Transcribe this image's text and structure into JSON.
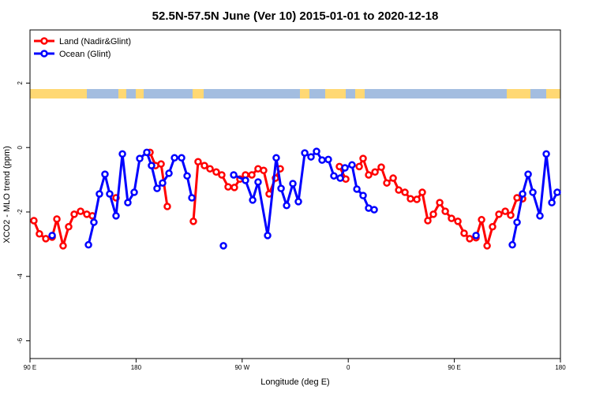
{
  "chart_data": {
    "type": "line",
    "title": "52.5N-57.5N June (Ver 10)   2015-01-01 to 2020-12-18",
    "x_label": "Longitude (deg E)",
    "y_label": "XCO2 - MLO trend (ppm)",
    "xlim": [
      90,
      540
    ],
    "ylim": [
      -6.55,
      3.65
    ],
    "xticks": [
      {
        "value": 90,
        "label": "90 E"
      },
      180,
      {
        "value": 270,
        "label": "90 W"
      },
      {
        "value": 360,
        "label": "0"
      },
      {
        "value": 450,
        "label": "90 E"
      },
      {
        "value": 540,
        "label": "180"
      }
    ],
    "yticks": [
      -6,
      -4,
      -2,
      0,
      2
    ],
    "legend": "top-left",
    "series": [
      {
        "name": "Land (Nadir&Glint)",
        "color": "#ff0000",
        "x": [
          93.3,
          98.0,
          103.4,
          108.8,
          112.8,
          118.1,
          122.8,
          127.5,
          132.9,
          138.2,
          142.9,
          null,
          163.0,
          null,
          191.8,
          196.5,
          201.2,
          206.5,
          null,
          228.6,
          232.6,
          238.0,
          242.7,
          248.0,
          252.7,
          258.1,
          263.4,
          268.1,
          272.8,
          278.2,
          283.5,
          288.2,
          292.9,
          298.3,
          302.3,
          null,
          352.5,
          357.9,
          null,
          369.3,
          372.6,
          377.3,
          382.7,
          388.0,
          392.7,
          398.1,
          402.8,
          408.1,
          412.8,
          418.2,
          422.8,
          427.5,
          432.2,
          437.6,
          442.3,
          447.6,
          453.0,
          458.3,
          463.0,
          468.4,
          473.1,
          477.8,
          482.4,
          487.8,
          493.2,
          497.8,
          503.2,
          507.9
        ],
        "values": [
          -2.27,
          -2.68,
          -2.83,
          -2.78,
          -2.22,
          -3.05,
          -2.46,
          -2.07,
          -1.98,
          -2.07,
          -2.12,
          null,
          -1.56,
          null,
          -0.15,
          -0.56,
          -0.51,
          -1.83,
          null,
          -2.29,
          -0.44,
          -0.56,
          -0.66,
          -0.76,
          -0.85,
          -1.22,
          -1.24,
          -0.98,
          -0.85,
          -0.85,
          -0.66,
          -0.71,
          -1.44,
          -0.95,
          -0.66,
          null,
          -0.59,
          -0.98,
          null,
          -0.59,
          -0.34,
          -0.85,
          -0.76,
          -0.61,
          -1.1,
          -0.95,
          -1.32,
          -1.39,
          -1.59,
          -1.61,
          -1.39,
          -2.27,
          -2.07,
          -1.71,
          -1.98,
          -2.2,
          -2.29,
          -2.66,
          -2.83,
          -2.8,
          -2.24,
          -3.05,
          -2.46,
          -2.07,
          -1.98,
          -2.1,
          -1.56,
          -1.59
        ]
      },
      {
        "name": "Ocean (Glint)",
        "color": "#0000ff",
        "x": [
          108.8,
          null,
          139.6,
          144.2,
          148.9,
          153.6,
          157.6,
          163.0,
          168.4,
          173.0,
          178.4,
          183.1,
          189.1,
          193.1,
          197.8,
          202.5,
          207.9,
          212.6,
          218.6,
          223.3,
          227.3,
          null,
          254.1,
          null,
          262.8,
          272.8,
          278.9,
          283.5,
          291.6,
          298.9,
          303.0,
          307.7,
          313.0,
          317.7,
          323.1,
          328.4,
          333.1,
          337.8,
          343.1,
          347.8,
          353.2,
          357.2,
          363.2,
          367.3,
          372.6,
          377.3,
          382.0,
          null,
          468.4,
          null,
          499.2,
          503.2,
          507.9,
          512.6,
          516.6,
          522.6,
          528.0,
          532.7,
          537.3
        ],
        "values": [
          -2.73,
          null,
          -3.02,
          -2.32,
          -1.44,
          -0.83,
          -1.44,
          -2.12,
          -0.2,
          -1.71,
          -1.39,
          -0.34,
          -0.15,
          -0.56,
          -1.27,
          -1.1,
          -0.8,
          -0.32,
          -0.32,
          -0.88,
          -1.56,
          null,
          -3.05,
          null,
          -0.85,
          -1.02,
          -1.63,
          -1.07,
          -2.73,
          -0.32,
          -1.27,
          -1.8,
          -1.12,
          -1.68,
          -0.17,
          -0.29,
          -0.12,
          -0.39,
          -0.37,
          -0.88,
          -0.95,
          -0.63,
          -0.54,
          -1.29,
          -1.49,
          -1.88,
          -1.93,
          null,
          -2.73,
          null,
          -3.02,
          -2.32,
          -1.44,
          -0.83,
          -1.39,
          -2.12,
          -0.2,
          -1.71,
          -1.39
        ]
      }
    ]
  }
}
